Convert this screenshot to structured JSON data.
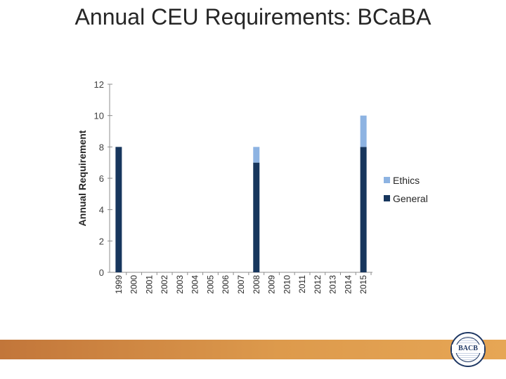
{
  "page": {
    "title": "Annual CEU Requirements: BCaBA"
  },
  "logo": {
    "text": "BACB"
  },
  "chart_data": {
    "type": "bar",
    "stacked": true,
    "title": "",
    "xlabel": "",
    "ylabel": "Annual Requirement",
    "ylim": [
      0,
      12
    ],
    "yticks": [
      0,
      2,
      4,
      6,
      8,
      10,
      12
    ],
    "categories": [
      "1999",
      "2000",
      "2001",
      "2002",
      "2003",
      "2004",
      "2005",
      "2006",
      "2007",
      "2008",
      "2009",
      "2010",
      "2011",
      "2012",
      "2013",
      "2014",
      "2015"
    ],
    "series": [
      {
        "name": "General",
        "color": "#17365d",
        "values": [
          8,
          0,
          0,
          0,
          0,
          0,
          0,
          0,
          0,
          7,
          0,
          0,
          0,
          0,
          0,
          0,
          8
        ]
      },
      {
        "name": "Ethics",
        "color": "#8db3e2",
        "values": [
          0,
          0,
          0,
          0,
          0,
          0,
          0,
          0,
          0,
          1,
          0,
          0,
          0,
          0,
          0,
          0,
          2
        ]
      }
    ],
    "legend": {
      "placement": "right",
      "order": [
        "Ethics",
        "General"
      ]
    },
    "grid": false
  }
}
